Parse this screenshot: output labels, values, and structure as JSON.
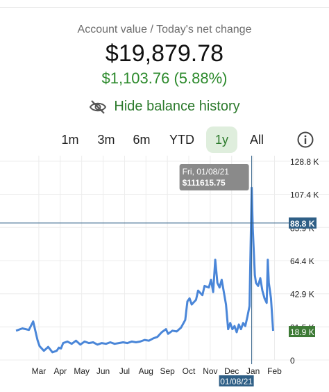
{
  "summary": {
    "label": "Account value / Today's net change",
    "value": "$19,879.78",
    "change": "$1,103.76 (5.88%)"
  },
  "history_toggle": {
    "label": "Hide balance history",
    "icon": "eye-slash-icon"
  },
  "ranges": [
    {
      "label": "1m",
      "active": false
    },
    {
      "label": "3m",
      "active": false
    },
    {
      "label": "6m",
      "active": false
    },
    {
      "label": "YTD",
      "active": false
    },
    {
      "label": "1y",
      "active": true
    },
    {
      "label": "All",
      "active": false
    }
  ],
  "info_icon": "info-circle-icon",
  "colors": {
    "line": "#4a86d8",
    "positive": "#2c8a2c",
    "active_bg": "#dfeedd",
    "badge": "#2f5f86",
    "last_badge": "#3d7a35",
    "tooltip_bg": "#8a8a8a"
  },
  "chart_data": {
    "type": "line",
    "y_tick_labels": [
      "128.8 K",
      "107.4 K",
      "85.9 K",
      "64.4 K",
      "42.9 K",
      "21.5 K",
      "0"
    ],
    "y_ticks": [
      128800,
      107400,
      85900,
      64400,
      42900,
      21500,
      0
    ],
    "ylim": [
      0,
      128800
    ],
    "x_tick_labels": [
      "Mar",
      "Apr",
      "May",
      "Jun",
      "Jul",
      "Aug",
      "Sep",
      "Oct",
      "Nov",
      "Dec",
      "Jan",
      "Feb"
    ],
    "x_tick_months": [
      1,
      2,
      3,
      4,
      5,
      6,
      7,
      8,
      9,
      10,
      11,
      12
    ],
    "xlim_months": [
      -0.1,
      12.6
    ],
    "series": [
      {
        "x": [
          0,
          0.3,
          0.6,
          0.8,
          0.9,
          1.0,
          1.1,
          1.3,
          1.5,
          1.7,
          1.9,
          2.0,
          2.1,
          2.2,
          2.4,
          2.6,
          2.8,
          3.0,
          3.2,
          3.4,
          3.6,
          3.8,
          4.0,
          4.2,
          4.4,
          4.6,
          4.8,
          5.0,
          5.2,
          5.4,
          5.6,
          5.8,
          6.0,
          6.2,
          6.4,
          6.6,
          6.8,
          7.0,
          7.1,
          7.3,
          7.5,
          7.7,
          7.9,
          8.0,
          8.1,
          8.2,
          8.4,
          8.5,
          8.7,
          8.8,
          9.0,
          9.1,
          9.2,
          9.3,
          9.4,
          9.5,
          9.6,
          9.7,
          9.8,
          9.9,
          10.0,
          10.1,
          10.2,
          10.3,
          10.4,
          10.5,
          10.6,
          10.7,
          10.8,
          10.9,
          11.0,
          11.05,
          11.1,
          11.15,
          11.2,
          11.3,
          11.4,
          11.5,
          11.6,
          11.7,
          11.75,
          11.8,
          11.85,
          11.9,
          12.0
        ],
        "y": [
          19000,
          20500,
          19500,
          25000,
          19000,
          13000,
          9000,
          6000,
          8500,
          5000,
          6000,
          8000,
          7500,
          11000,
          12000,
          10500,
          12500,
          10000,
          12000,
          11000,
          11500,
          10000,
          11000,
          10500,
          11500,
          10500,
          11000,
          11500,
          11000,
          12000,
          11500,
          12000,
          13000,
          12500,
          14000,
          15000,
          18000,
          20000,
          17000,
          19000,
          18500,
          21000,
          26000,
          38000,
          40000,
          36000,
          39000,
          45000,
          42000,
          48000,
          47000,
          52000,
          44000,
          65000,
          50000,
          47000,
          52000,
          44000,
          36000,
          20000,
          24000,
          20000,
          22000,
          18000,
          23000,
          20000,
          24000,
          22000,
          28000,
          35000,
          111615.75,
          85000,
          70000,
          55000,
          50000,
          48000,
          53000,
          45000,
          40000,
          37000,
          65000,
          50000,
          45000,
          40000,
          18900
        ]
      }
    ],
    "hover": {
      "date_label": "Fri, 01/08/21",
      "value_label": "$111615.75",
      "x_axis_badge": "01/08/21",
      "crosshair_value": 88800,
      "crosshair_label": "88.8 K"
    },
    "last_value_label": "18.9 K",
    "last_value": 18900,
    "grid": true
  }
}
